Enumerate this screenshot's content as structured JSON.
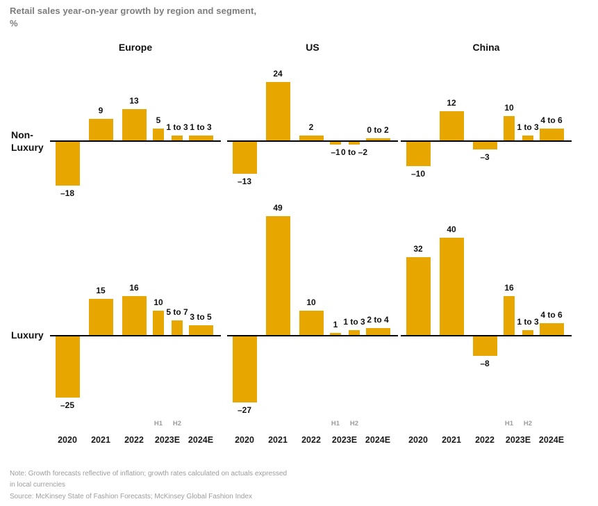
{
  "title": {
    "line1": "Retail sales year-on-year growth by region and segment,",
    "line2": "%"
  },
  "colors": {
    "bar": "#E8A600",
    "title_text": "#7D7D7D",
    "muted_text": "#9C9C9C",
    "dark_text": "#111111",
    "axis": "#000000"
  },
  "chart_data": {
    "type": "bar",
    "unit": "%",
    "title": "Retail sales year-on-year growth by region and segment, %",
    "regions": [
      "Europe",
      "US",
      "China"
    ],
    "segments": [
      "Non-Luxury",
      "Luxury"
    ],
    "row_labels": [
      [
        "Non-",
        "Luxury"
      ],
      [
        "Luxury"
      ]
    ],
    "categories": [
      "2020",
      "2021",
      "2022",
      "2023E",
      "2024E"
    ],
    "half_labels": [
      "H1",
      "H2"
    ],
    "layout_hints": {
      "grid": "off",
      "legend": "none",
      "shared_scale_pct_per_unit": true,
      "negative_bars_below_baseline": true
    },
    "panels": [
      {
        "region": "Europe",
        "segment": "Non-Luxury",
        "values": [
          {
            "year": "2020",
            "label": "–18",
            "v": -18
          },
          {
            "year": "2021",
            "label": "9",
            "v": 9
          },
          {
            "year": "2022",
            "label": "13",
            "v": 13
          },
          {
            "year": "2023E",
            "half": "H1",
            "label": "5",
            "v": 5
          },
          {
            "year": "2023E",
            "half": "H2",
            "label": "1 to 3",
            "v": 2
          },
          {
            "year": "2024E",
            "label": "1 to 3",
            "v": 2
          }
        ]
      },
      {
        "region": "US",
        "segment": "Non-Luxury",
        "values": [
          {
            "year": "2020",
            "label": "–13",
            "v": -13
          },
          {
            "year": "2021",
            "label": "24",
            "v": 24
          },
          {
            "year": "2022",
            "label": "2",
            "v": 2
          },
          {
            "year": "2023E",
            "half": "H1",
            "label": "–1",
            "v": -1
          },
          {
            "year": "2023E",
            "half": "H2",
            "label": "0 to –2",
            "v": -1
          },
          {
            "year": "2024E",
            "label": "0 to 2",
            "v": 1
          }
        ]
      },
      {
        "region": "China",
        "segment": "Non-Luxury",
        "values": [
          {
            "year": "2020",
            "label": "–10",
            "v": -10
          },
          {
            "year": "2021",
            "label": "12",
            "v": 12
          },
          {
            "year": "2022",
            "label": "–3",
            "v": -3
          },
          {
            "year": "2023E",
            "half": "H1",
            "label": "10",
            "v": 10
          },
          {
            "year": "2023E",
            "half": "H2",
            "label": "1 to 3",
            "v": 2
          },
          {
            "year": "2024E",
            "label": "4 to 6",
            "v": 5
          }
        ]
      },
      {
        "region": "Europe",
        "segment": "Luxury",
        "values": [
          {
            "year": "2020",
            "label": "–25",
            "v": -25
          },
          {
            "year": "2021",
            "label": "15",
            "v": 15
          },
          {
            "year": "2022",
            "label": "16",
            "v": 16
          },
          {
            "year": "2023E",
            "half": "H1",
            "label": "10",
            "v": 10
          },
          {
            "year": "2023E",
            "half": "H2",
            "label": "5 to 7",
            "v": 6
          },
          {
            "year": "2024E",
            "label": "3 to 5",
            "v": 4
          }
        ]
      },
      {
        "region": "US",
        "segment": "Luxury",
        "values": [
          {
            "year": "2020",
            "label": "–27",
            "v": -27
          },
          {
            "year": "2021",
            "label": "49",
            "v": 49
          },
          {
            "year": "2022",
            "label": "10",
            "v": 10
          },
          {
            "year": "2023E",
            "half": "H1",
            "label": "1",
            "v": 1
          },
          {
            "year": "2023E",
            "half": "H2",
            "label": "1 to 3",
            "v": 2
          },
          {
            "year": "2024E",
            "label": "2 to 4",
            "v": 3
          }
        ]
      },
      {
        "region": "China",
        "segment": "Luxury",
        "values": [
          {
            "year": "2020",
            "label": "32",
            "v": 32
          },
          {
            "year": "2021",
            "label": "40",
            "v": 40
          },
          {
            "year": "2022",
            "label": "–8",
            "v": -8
          },
          {
            "year": "2023E",
            "half": "H1",
            "label": "16",
            "v": 16
          },
          {
            "year": "2023E",
            "half": "H2",
            "label": "1 to 3",
            "v": 2
          },
          {
            "year": "2024E",
            "label": "4 to 6",
            "v": 5
          }
        ]
      }
    ]
  },
  "note": {
    "line1": "Note: Growth forecasts reflective of inflation; growth rates calculated on actuals expressed",
    "line2": "in local currencies"
  },
  "source": "Source: McKinsey State of Fashion Forecasts; McKinsey Global Fashion Index"
}
